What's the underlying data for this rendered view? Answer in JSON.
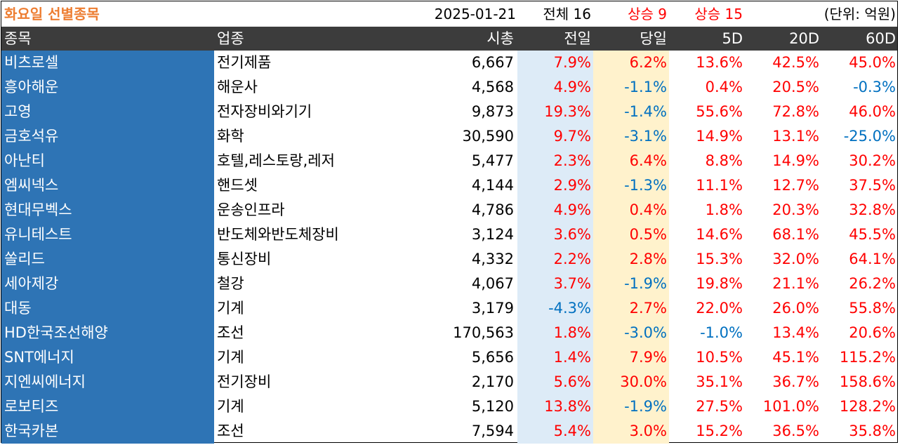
{
  "title": "화요일 선별종목",
  "date": "2025-01-21",
  "total_label": "전체 16",
  "up_today_label": "상승 9",
  "up_prev_label": "상승 15",
  "unit_label": "(단위: 억원)",
  "colors": {
    "name_bg": "#2e74b5",
    "header_bg": "#3c3c3c",
    "prev_bg": "#ddebf7",
    "today_bg": "#fff2cc",
    "positive": "#ff0000",
    "negative": "#0070c0",
    "title": "#ed7d31"
  },
  "headers": {
    "name": "종목",
    "sector": "업종",
    "cap": "시총",
    "prev": "전일",
    "today": "당일",
    "d5": "5D",
    "d20": "20D",
    "d60": "60D"
  },
  "rows": [
    {
      "name": "비츠로셀",
      "sector": "전기제품",
      "cap": "6,667",
      "prev": "7.9%",
      "today": "6.2%",
      "d5": "13.6%",
      "d20": "42.5%",
      "d60": "45.0%"
    },
    {
      "name": "흥아해운",
      "sector": "해운사",
      "cap": "4,568",
      "prev": "4.9%",
      "today": "-1.1%",
      "d5": "0.4%",
      "d20": "20.5%",
      "d60": "-0.3%"
    },
    {
      "name": "고영",
      "sector": "전자장비와기기",
      "cap": "9,873",
      "prev": "19.3%",
      "today": "-1.4%",
      "d5": "55.6%",
      "d20": "72.8%",
      "d60": "46.0%"
    },
    {
      "name": "금호석유",
      "sector": "화학",
      "cap": "30,590",
      "prev": "9.7%",
      "today": "-3.1%",
      "d5": "14.9%",
      "d20": "13.1%",
      "d60": "-25.0%"
    },
    {
      "name": "아난티",
      "sector": "호텔,레스토랑,레저",
      "cap": "5,477",
      "prev": "2.3%",
      "today": "6.4%",
      "d5": "8.8%",
      "d20": "14.9%",
      "d60": "30.2%"
    },
    {
      "name": "엠씨넥스",
      "sector": "핸드셋",
      "cap": "4,144",
      "prev": "2.9%",
      "today": "-1.3%",
      "d5": "11.1%",
      "d20": "12.7%",
      "d60": "37.5%"
    },
    {
      "name": "현대무벡스",
      "sector": "운송인프라",
      "cap": "4,786",
      "prev": "4.9%",
      "today": "0.4%",
      "d5": "1.8%",
      "d20": "20.3%",
      "d60": "32.8%"
    },
    {
      "name": "유니테스트",
      "sector": "반도체와반도체장비",
      "cap": "3,124",
      "prev": "3.6%",
      "today": "0.5%",
      "d5": "14.6%",
      "d20": "68.1%",
      "d60": "45.5%"
    },
    {
      "name": "쏠리드",
      "sector": "통신장비",
      "cap": "4,332",
      "prev": "2.2%",
      "today": "2.8%",
      "d5": "15.3%",
      "d20": "32.0%",
      "d60": "64.1%"
    },
    {
      "name": "세아제강",
      "sector": "철강",
      "cap": "4,067",
      "prev": "3.7%",
      "today": "-1.9%",
      "d5": "19.8%",
      "d20": "21.1%",
      "d60": "26.2%"
    },
    {
      "name": "대동",
      "sector": "기계",
      "cap": "3,179",
      "prev": "-4.3%",
      "today": "2.7%",
      "d5": "22.0%",
      "d20": "26.0%",
      "d60": "55.8%"
    },
    {
      "name": "HD한국조선해양",
      "sector": "조선",
      "cap": "170,563",
      "prev": "1.8%",
      "today": "-3.0%",
      "d5": "-1.0%",
      "d20": "13.4%",
      "d60": "20.6%"
    },
    {
      "name": "SNT에너지",
      "sector": "기계",
      "cap": "5,656",
      "prev": "1.4%",
      "today": "7.9%",
      "d5": "10.5%",
      "d20": "45.1%",
      "d60": "115.2%"
    },
    {
      "name": "지엔씨에너지",
      "sector": "전기장비",
      "cap": "2,170",
      "prev": "5.6%",
      "today": "30.0%",
      "d5": "35.1%",
      "d20": "36.7%",
      "d60": "158.6%"
    },
    {
      "name": "로보티즈",
      "sector": "기계",
      "cap": "5,120",
      "prev": "13.8%",
      "today": "-1.9%",
      "d5": "27.5%",
      "d20": "101.0%",
      "d60": "128.2%"
    },
    {
      "name": "한국카본",
      "sector": "조선",
      "cap": "7,594",
      "prev": "5.4%",
      "today": "3.0%",
      "d5": "15.2%",
      "d20": "36.5%",
      "d60": "35.8%"
    }
  ]
}
